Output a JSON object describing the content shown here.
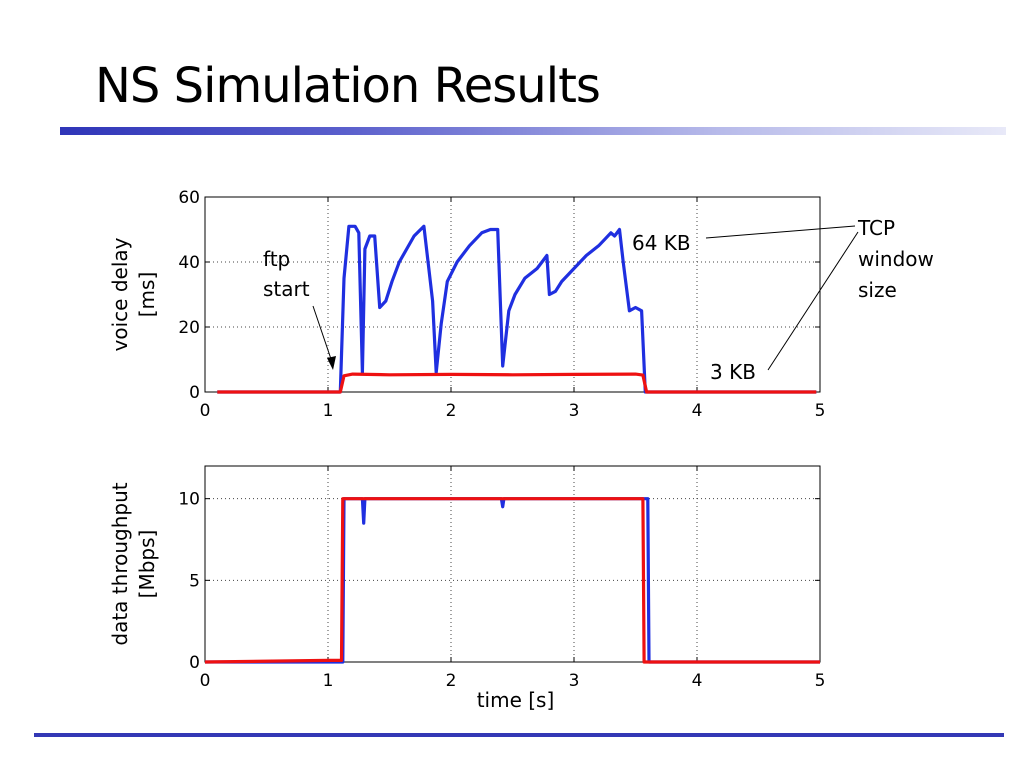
{
  "slide": {
    "title": "NS Simulation Results"
  },
  "colors": {
    "series_64kb": "#1f2fe0",
    "series_3kb": "#ee1111",
    "accent_bar": "#3338b5"
  },
  "chart_data": [
    {
      "type": "line",
      "ylabel": [
        "voice delay",
        "[ms]"
      ],
      "xlim": [
        0,
        5
      ],
      "ylim": [
        0,
        60
      ],
      "xticks": [
        "0",
        "1",
        "2",
        "3",
        "4",
        "5"
      ],
      "yticks": [
        "0",
        "20",
        "40",
        "60"
      ],
      "grid": true,
      "series": [
        {
          "name": "64 KB",
          "color": "#1f2fe0",
          "x": [
            0.1,
            1.1,
            1.13,
            1.17,
            1.22,
            1.25,
            1.28,
            1.3,
            1.34,
            1.38,
            1.42,
            1.47,
            1.52,
            1.58,
            1.64,
            1.7,
            1.78,
            1.85,
            1.88,
            1.92,
            1.97,
            2.05,
            2.15,
            2.25,
            2.32,
            2.38,
            2.42,
            2.47,
            2.52,
            2.6,
            2.7,
            2.78,
            2.8,
            2.85,
            2.9,
            3.0,
            3.1,
            3.2,
            3.25,
            3.3,
            3.33,
            3.37,
            3.4,
            3.45,
            3.5,
            3.55,
            3.58,
            3.6,
            3.7,
            4.0,
            4.5,
            4.97
          ],
          "y": [
            0,
            0,
            35,
            51,
            51,
            49,
            6,
            44,
            48,
            48,
            26,
            28,
            34,
            40,
            44,
            48,
            51,
            28,
            6,
            21,
            34,
            40,
            45,
            49,
            50,
            50,
            8,
            25,
            30,
            35,
            38,
            42,
            30,
            31,
            34,
            38,
            42,
            45,
            47,
            49,
            48,
            50,
            40,
            25,
            26,
            25,
            0,
            0,
            0,
            0,
            0,
            0
          ]
        },
        {
          "name": "3 KB",
          "color": "#ee1111",
          "x": [
            0.1,
            1.1,
            1.13,
            1.2,
            1.5,
            2.0,
            2.5,
            3.0,
            3.5,
            3.56,
            3.59,
            3.7,
            4.5,
            4.97
          ],
          "y": [
            0,
            0,
            5,
            5.5,
            5.3,
            5.4,
            5.3,
            5.4,
            5.5,
            5.2,
            0,
            0,
            0,
            0
          ]
        }
      ],
      "annotations": {
        "ftp": [
          "ftp",
          "start"
        ],
        "label_64kb": "64 KB",
        "label_3kb": "3 KB",
        "tcp": [
          "TCP",
          "window",
          "size"
        ]
      }
    },
    {
      "type": "line",
      "ylabel": [
        "data throughput",
        "[Mbps]"
      ],
      "xlabel": "time [s]",
      "xlim": [
        0,
        5
      ],
      "ylim": [
        0,
        12
      ],
      "xticks": [
        "0",
        "1",
        "2",
        "3",
        "4",
        "5"
      ],
      "yticks": [
        "0",
        "5",
        "10"
      ],
      "grid": true,
      "series": [
        {
          "name": "64 KB",
          "color": "#1f2fe0",
          "x": [
            0,
            0.3,
            1.12,
            1.13,
            1.28,
            1.29,
            1.3,
            1.5,
            2.0,
            2.41,
            2.42,
            2.43,
            3.0,
            3.5,
            3.6,
            3.61,
            3.7,
            4.5,
            5
          ],
          "y": [
            0,
            0,
            0,
            10,
            10,
            8.5,
            10,
            10,
            10,
            10,
            9.5,
            10,
            10,
            10,
            10,
            0,
            0,
            0,
            0
          ]
        },
        {
          "name": "3 KB",
          "color": "#ee1111",
          "x": [
            0,
            1.0,
            1.11,
            1.12,
            1.14,
            1.5,
            2.0,
            2.5,
            3.0,
            3.5,
            3.56,
            3.57,
            3.6,
            4.5,
            5
          ],
          "y": [
            0,
            0.1,
            0.1,
            10,
            10,
            10,
            10,
            10,
            10,
            10,
            10,
            0,
            0,
            0,
            0
          ]
        }
      ]
    }
  ]
}
